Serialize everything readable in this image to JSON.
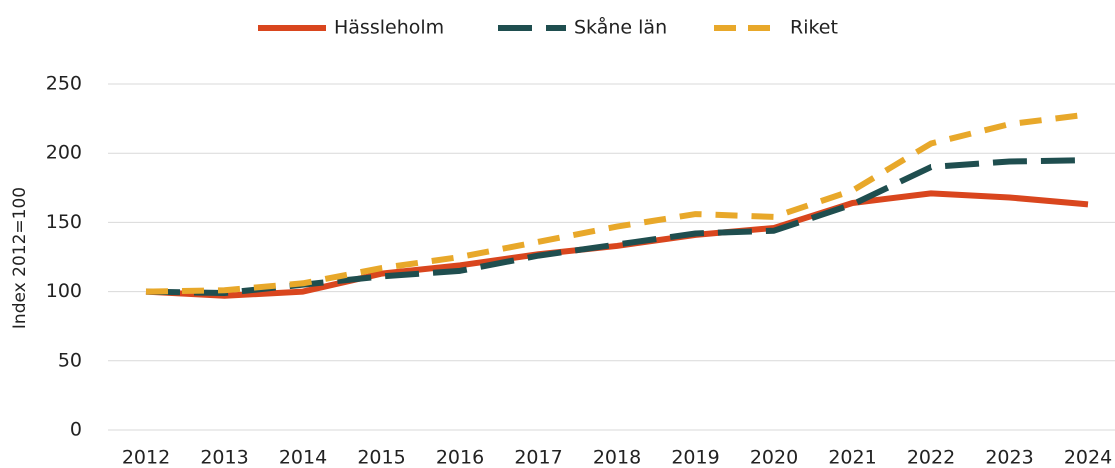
{
  "chart_data": {
    "type": "line",
    "y_label": "Index 2012=100",
    "categories": [
      "2012",
      "2013",
      "2014",
      "2015",
      "2016",
      "2017",
      "2018",
      "2019",
      "2020",
      "2021",
      "2022",
      "2023",
      "2024"
    ],
    "series": [
      {
        "name": "Hässleholm",
        "color": "#d9461e",
        "dash": "solid",
        "values": [
          100,
          97,
          100,
          113,
          119,
          127,
          133,
          141,
          146,
          164,
          171,
          168,
          163
        ]
      },
      {
        "name": "Skåne län",
        "color": "#1f4e4f",
        "dash": "long-dash",
        "values": [
          100,
          99,
          105,
          111,
          115,
          126,
          134,
          142,
          144,
          163,
          190,
          194,
          195
        ]
      },
      {
        "name": "Riket",
        "color": "#e8a82a",
        "dash": "dash",
        "values": [
          100,
          101,
          106,
          117,
          125,
          136,
          147,
          156,
          154,
          173,
          207,
          221,
          228
        ]
      }
    ],
    "ylim": [
      0,
      250
    ],
    "yticks": [
      0,
      50,
      100,
      150,
      200,
      250
    ],
    "grid": true,
    "legend": "top"
  }
}
